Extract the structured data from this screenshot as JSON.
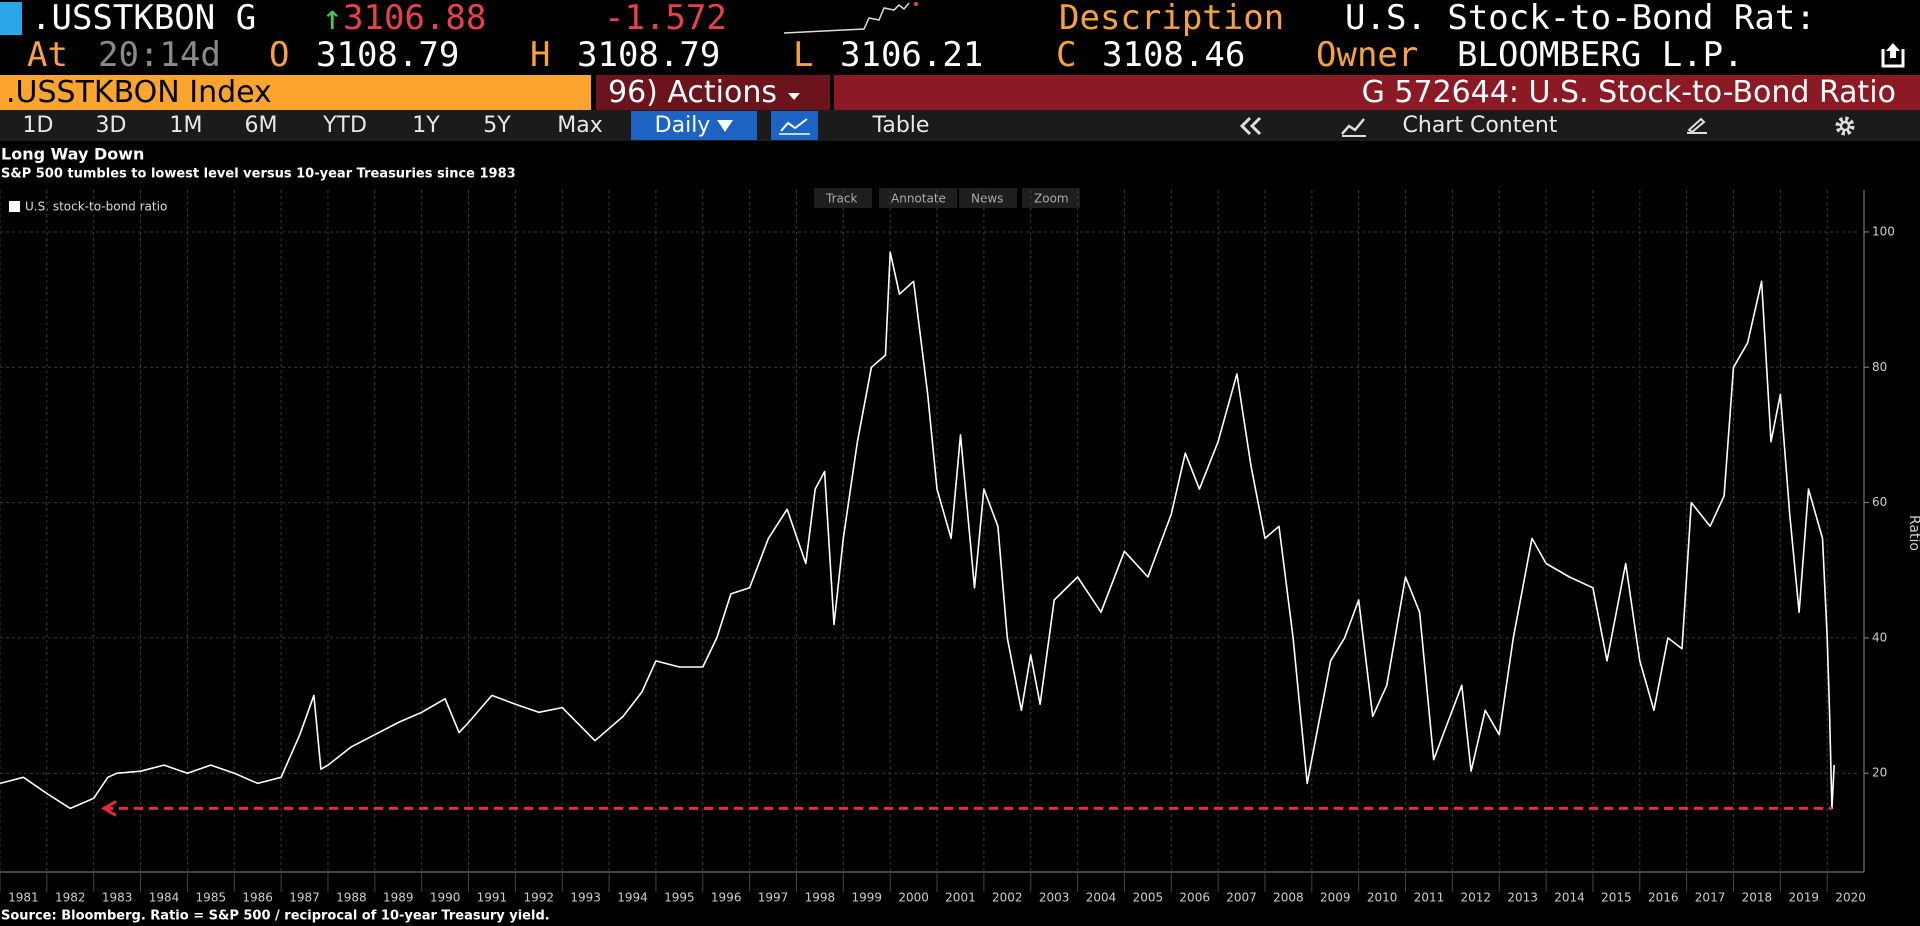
{
  "header": {
    "ticker": ".USSTKBON G",
    "arrow": "↑",
    "price": "3106.88",
    "change": "-1.572",
    "description_label": "Description",
    "description": "U.S. Stock-to-Bond Rat:",
    "at_label": "At",
    "time": "20:14d",
    "open_label": "O",
    "open": "3108.79",
    "high_label": "H",
    "high": "3108.79",
    "low_label": "L",
    "low": "3106.21",
    "close_label": "C",
    "close": "3108.46",
    "owner_label": "Owner",
    "owner": "BLOOMBERG L.P."
  },
  "toolbar": {
    "security": ".USSTKBON Index",
    "actions": "96) Actions",
    "chart_id": "G 572644: U.S. Stock-to-Bond Ratio",
    "periods": [
      "1D",
      "3D",
      "1M",
      "6M",
      "YTD",
      "1Y",
      "5Y",
      "Max"
    ],
    "frequency": "Daily",
    "table": "Table",
    "chart_content": "Chart Content"
  },
  "chart_tools": [
    "Track",
    "Annotate",
    "News",
    "Zoom"
  ],
  "chart_data": {
    "type": "line",
    "title": "Long Way Down",
    "subtitle": "S&P 500 tumbles to lowest level versus 10-year Treasuries since 1983",
    "y_label": "Ratio",
    "source": "Source: Bloomberg. Ratio = S&P 500 / reciprocal of 10-year Treasury yield.",
    "x": [
      1981.0,
      1981.5,
      1982.0,
      1982.5,
      1983.0,
      1983.3,
      1983.5,
      1984.0,
      1984.5,
      1985.0,
      1985.5,
      1986.0,
      1986.5,
      1987.0,
      1987.4,
      1987.7,
      1987.85,
      1988.0,
      1988.5,
      1989.0,
      1989.5,
      1990.0,
      1990.5,
      1990.8,
      1991.0,
      1991.5,
      1992.0,
      1992.5,
      1993.0,
      1993.7,
      1994.3,
      1994.7,
      1995.0,
      1995.5,
      1996.0,
      1996.3,
      1996.6,
      1997.0,
      1997.4,
      1997.8,
      1998.2,
      1998.4,
      1998.6,
      1998.8,
      1999.0,
      1999.3,
      1999.6,
      1999.9,
      2000.0,
      2000.2,
      2000.5,
      2000.8,
      2001.0,
      2001.3,
      2001.5,
      2001.8,
      2002.0,
      2002.3,
      2002.5,
      2002.8,
      2003.0,
      2003.2,
      2003.5,
      2004.0,
      2004.5,
      2005.0,
      2005.5,
      2006.0,
      2006.3,
      2006.6,
      2007.0,
      2007.4,
      2007.7,
      2008.0,
      2008.3,
      2008.6,
      2008.9,
      2009.1,
      2009.4,
      2009.7,
      2010.0,
      2010.3,
      2010.6,
      2011.0,
      2011.3,
      2011.6,
      2011.9,
      2012.2,
      2012.4,
      2012.7,
      2013.0,
      2013.3,
      2013.7,
      2014.0,
      2014.5,
      2015.0,
      2015.3,
      2015.7,
      2016.0,
      2016.3,
      2016.6,
      2016.9,
      2017.1,
      2017.5,
      2017.8,
      2018.0,
      2018.3,
      2018.6,
      2018.8,
      2019.0,
      2019.2,
      2019.4,
      2019.6,
      2019.9,
      2020.0,
      2020.05,
      2020.1,
      2020.15
    ],
    "series": [
      {
        "name": "U.S. stock-to-bond ratio",
        "color": "#ffffff",
        "values": [
          18.5,
          19.4,
          17,
          14.8,
          16.3,
          19.4,
          20,
          20.3,
          21.2,
          20,
          21.2,
          20,
          18.5,
          19.4,
          25.7,
          31.5,
          20.6,
          21.2,
          23.9,
          25.7,
          27.5,
          29,
          31,
          26,
          27.5,
          31.5,
          30.2,
          29,
          29.7,
          24.8,
          28.4,
          32,
          36.6,
          35.7,
          35.7,
          40,
          46.5,
          47.4,
          54.7,
          59,
          51,
          62,
          64.6,
          42,
          54.7,
          69,
          80,
          81.8,
          97,
          90.8,
          92.7,
          76,
          62,
          54.7,
          70,
          47.4,
          62,
          56.5,
          40,
          29.3,
          37.5,
          30.2,
          45.6,
          49,
          43.8,
          52.8,
          49,
          58.3,
          67.3,
          62,
          69,
          79,
          65.5,
          54.7,
          56.5,
          40,
          18.5,
          25.7,
          36.6,
          40,
          45.6,
          28.4,
          33,
          49,
          43.8,
          22,
          27.5,
          33,
          20.3,
          29.3,
          25.7,
          40,
          54.7,
          51,
          49,
          47.4,
          36.6,
          51,
          36.6,
          29.3,
          40,
          38.4,
          60,
          56.5,
          61,
          80,
          83.6,
          92.7,
          69,
          76,
          58.3,
          43.8,
          62,
          54.7,
          40,
          29.3,
          14.8,
          21.2
        ]
      }
    ],
    "xlim": [
      1981,
      2020.7
    ],
    "ylim": [
      5.4,
      106.2
    ],
    "xticks": [
      1981,
      1982,
      1983,
      1984,
      1985,
      1986,
      1987,
      1988,
      1989,
      1990,
      1991,
      1992,
      1993,
      1994,
      1995,
      1996,
      1997,
      1998,
      1999,
      2000,
      2001,
      2002,
      2003,
      2004,
      2005,
      2006,
      2007,
      2008,
      2009,
      2010,
      2011,
      2012,
      2013,
      2014,
      2015,
      2016,
      2017,
      2018,
      2019,
      2020
    ],
    "yticks": [
      20,
      40,
      60,
      80,
      100
    ],
    "grid": true,
    "reference_line": {
      "value": 14.8,
      "color": "#e8283c"
    }
  }
}
